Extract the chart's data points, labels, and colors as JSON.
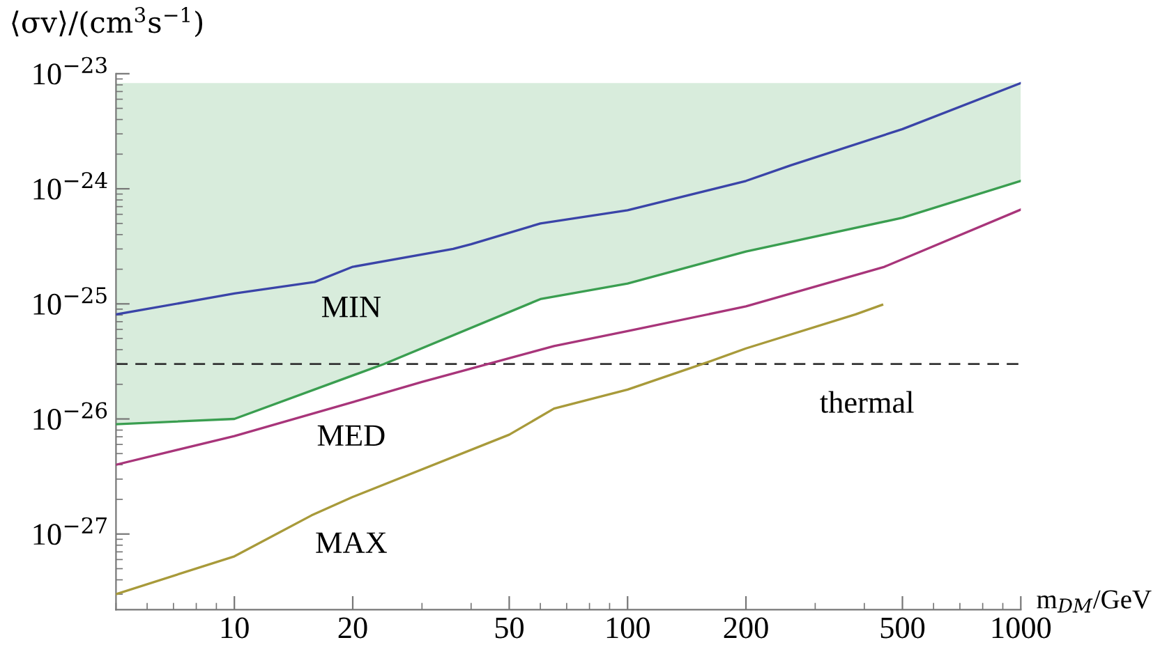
{
  "chart_data": {
    "type": "line",
    "xlabel": "m$_{DM}$/GeV",
    "ylabel": "⟨σv⟩/(cm$^{3}$s$^{−1}$)",
    "log": "xy",
    "grid": false,
    "legend": false,
    "line_style": "solid",
    "marker": "none",
    "xlim": [
      5,
      1000
    ],
    "ylim": [
      2.2e-28,
      1e-23
    ],
    "xticks": [
      10,
      20,
      50,
      100,
      200,
      500,
      1000
    ],
    "yticks": [
      {
        "value": 1e-27,
        "label": "10$^{−27}$"
      },
      {
        "value": 1e-26,
        "label": "10$^{−26}$"
      },
      {
        "value": 1e-25,
        "label": "10$^{−25}$"
      },
      {
        "value": 1e-24,
        "label": "10$^{−24}$"
      },
      {
        "value": 1e-23,
        "label": "10$^{−23}$"
      }
    ],
    "series": [
      {
        "color": "#3a44a8",
        "x": [
          5,
          10,
          16,
          20,
          36,
          40,
          60,
          100,
          200,
          260,
          500,
          1000
        ],
        "values": [
          8.1e-26,
          1.23e-25,
          1.55e-25,
          2.1e-25,
          3e-25,
          3.3e-25,
          5e-25,
          6.5e-25,
          1.17e-24,
          1.6e-24,
          3.3e-24,
          8.3e-24
        ]
      },
      {
        "color": "#3a9e50",
        "x": [
          5,
          10,
          24,
          60,
          100,
          200,
          500,
          1000
        ],
        "values": [
          9e-27,
          1e-26,
          3e-26,
          1.1e-25,
          1.5e-25,
          2.85e-25,
          5.6e-25,
          1.17e-24
        ],
        "lower": [
          9e-27,
          1e-26,
          3e-26,
          1.1e-25,
          1.5e-25,
          2.85e-25,
          5.6e-25,
          1.17e-24
        ],
        "upper": [
          8.3e-24,
          8.3e-24,
          8.3e-24,
          8.3e-24,
          8.3e-24,
          8.3e-24,
          8.3e-24,
          8.3e-24
        ]
      },
      {
        "color": "#a8357a",
        "x": [
          5,
          10,
          20,
          30,
          65,
          100,
          200,
          450,
          1000
        ],
        "values": [
          4e-27,
          7.1e-27,
          1.4e-26,
          2.1e-26,
          4.3e-26,
          5.8e-26,
          9.5e-26,
          2.1e-25,
          6.6e-25
        ]
      },
      {
        "color": "#a89a3a",
        "x": [
          5,
          10,
          15.7,
          20,
          50,
          65,
          100,
          155,
          200,
          380,
          444
        ],
        "values": [
          3e-28,
          6.4e-28,
          1.45e-27,
          2.1e-27,
          7.3e-27,
          1.23e-26,
          1.8e-26,
          3e-26,
          4.1e-26,
          8.1e-26,
          9.8e-26
        ]
      }
    ],
    "ref_lines": [
      {
        "axis": "y",
        "value": 3e-26,
        "label": "thermal",
        "line_style": "dashed",
        "color": "#333333"
      }
    ],
    "annotations": [
      "MIN",
      "MED",
      "MAX"
    ]
  }
}
